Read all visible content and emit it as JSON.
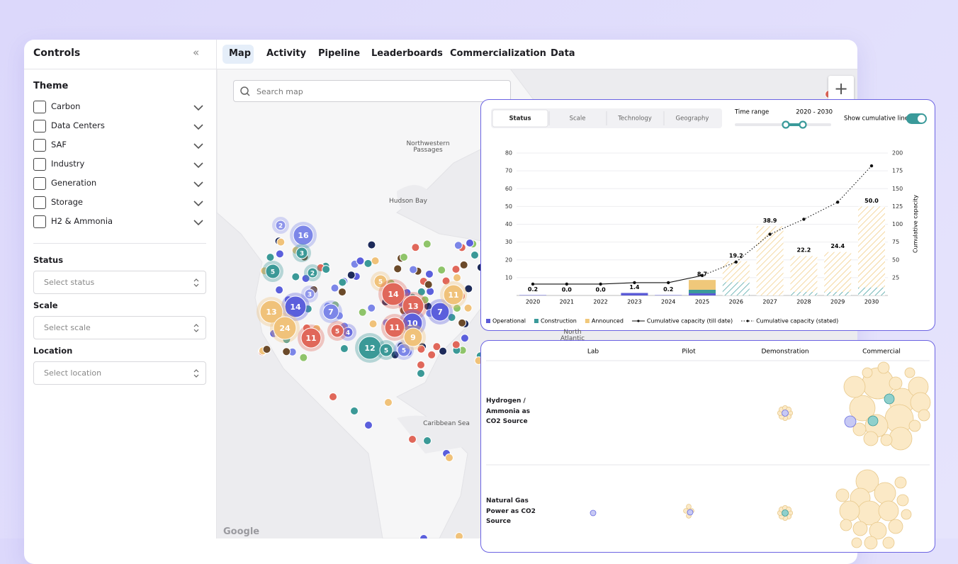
{
  "sidebar": {
    "title": "Controls",
    "collapse_icon": "«",
    "theme_heading": "Theme",
    "themes": [
      "Carbon",
      "Data Centers",
      "SAF",
      "Industry",
      "Generation",
      "Storage",
      "H2 & Ammonia"
    ],
    "filters": [
      {
        "label": "Status",
        "placeholder": "Select status"
      },
      {
        "label": "Scale",
        "placeholder": "Select scale"
      },
      {
        "label": "Location",
        "placeholder": "Select location"
      }
    ]
  },
  "tabs": {
    "items": [
      "Map",
      "Activity",
      "Pipeline",
      "Leaderboards",
      "Commercialization",
      "Data"
    ],
    "active": "Map"
  },
  "map": {
    "search_placeholder": "Search map",
    "zoom_in": "+",
    "labels": [
      "Northwestern Passages",
      "Hudson Bay",
      "Caribbean Sea",
      "North Atlantic"
    ],
    "attribution": "Google",
    "clusters": [
      {
        "count": 2,
        "color": "#8e95ea"
      },
      {
        "count": 16,
        "color": "#7c86e8"
      },
      {
        "count": 3,
        "color": "#3b9997"
      },
      {
        "count": 5,
        "color": "#3b9997"
      },
      {
        "count": 2,
        "color": "#3b9997"
      },
      {
        "count": 3,
        "color": "#8e95ea"
      },
      {
        "count": 14,
        "color": "#5b5fdc"
      },
      {
        "count": 13,
        "color": "#f0c27a"
      },
      {
        "count": 7,
        "color": "#7c86e8"
      },
      {
        "count": 24,
        "color": "#f0c27a"
      },
      {
        "count": 11,
        "color": "#e0675a"
      },
      {
        "count": 4,
        "color": "#6a6ee0"
      },
      {
        "count": 5,
        "color": "#e0675a"
      },
      {
        "count": 12,
        "color": "#3b9997"
      },
      {
        "count": 5,
        "color": "#3b9997"
      },
      {
        "count": 5,
        "color": "#7c86e8"
      },
      {
        "count": 5,
        "color": "#f0c27a"
      },
      {
        "count": 14,
        "color": "#e0675a"
      },
      {
        "count": 13,
        "color": "#e0675a"
      },
      {
        "count": 10,
        "color": "#5b5fdc"
      },
      {
        "count": 7,
        "color": "#5b5fdc"
      },
      {
        "count": 11,
        "color": "#e0675a"
      },
      {
        "count": 11,
        "color": "#f0c27a"
      },
      {
        "count": 9,
        "color": "#f0c27a"
      }
    ]
  },
  "chart_panel": {
    "tabs": [
      "Status",
      "Scale",
      "Technology",
      "Geography"
    ],
    "active_tab": "Status",
    "time_range_label": "Time range",
    "time_range_value": "2020 - 2030",
    "cumulative_toggle_label": "Show cumulative line",
    "cumulative_toggle_on": true
  },
  "chart_data": {
    "type": "bar",
    "stacked": true,
    "categories": [
      "2020",
      "2021",
      "2022",
      "2023",
      "2024",
      "2025",
      "2026",
      "2027",
      "2028",
      "2029",
      "2030"
    ],
    "series": [
      {
        "name": "Operational",
        "type": "bar",
        "color": "#5b5bd6",
        "values": [
          0.2,
          0,
          0,
          1.4,
          0.2,
          1.2,
          0,
          0,
          0,
          0,
          0
        ]
      },
      {
        "name": "Construction",
        "type": "bar",
        "color": "#3a9a9a",
        "values": [
          0,
          0,
          0,
          0,
          0,
          2.0,
          7.5,
          0,
          2.0,
          2.0,
          4.5
        ]
      },
      {
        "name": "Announced",
        "type": "bar",
        "color": "#f0c87a",
        "values": [
          0,
          0,
          0,
          0,
          0,
          5.5,
          11.7,
          38.9,
          20.2,
          22.4,
          45.5
        ]
      },
      {
        "name": "Cumulative capacity (till date)",
        "type": "line",
        "axis": "y2",
        "style": "solid",
        "color": "#111111",
        "values": [
          16,
          16,
          16,
          18,
          18,
          28,
          null,
          null,
          null,
          null,
          null
        ]
      },
      {
        "name": "Cumulative capacity (stated)",
        "type": "line",
        "axis": "y2",
        "style": "dotted",
        "color": "#111111",
        "values": [
          null,
          null,
          null,
          null,
          null,
          28,
          47,
          86,
          107,
          131,
          182
        ]
      }
    ],
    "totals": [
      0.2,
      0,
      0,
      1.4,
      0.2,
      8.7,
      19.2,
      38.9,
      22.2,
      24.4,
      50
    ],
    "value_labels": [
      "0.2",
      "0.0",
      "0.0",
      "1.4",
      "0.2",
      "8.7",
      "19.2",
      "38.9",
      "22.2",
      "24.4",
      "50.0"
    ],
    "ylim": [
      0,
      80
    ],
    "yticks": [
      10,
      20,
      30,
      40,
      50,
      60,
      70,
      80
    ],
    "y2lim": [
      0,
      200
    ],
    "y2ticks": [
      25,
      50,
      75,
      100,
      125,
      150,
      175,
      200
    ],
    "y2label": "Cumulative capacity",
    "grid": true,
    "legend": "bottom"
  },
  "maturity_matrix": {
    "columns": [
      "Lab",
      "Pilot",
      "Demonstration",
      "Commercial"
    ],
    "rows": [
      "Hydrogen / Ammonia as CO2 Source",
      "Natural Gas Power as CO2 Source"
    ]
  }
}
